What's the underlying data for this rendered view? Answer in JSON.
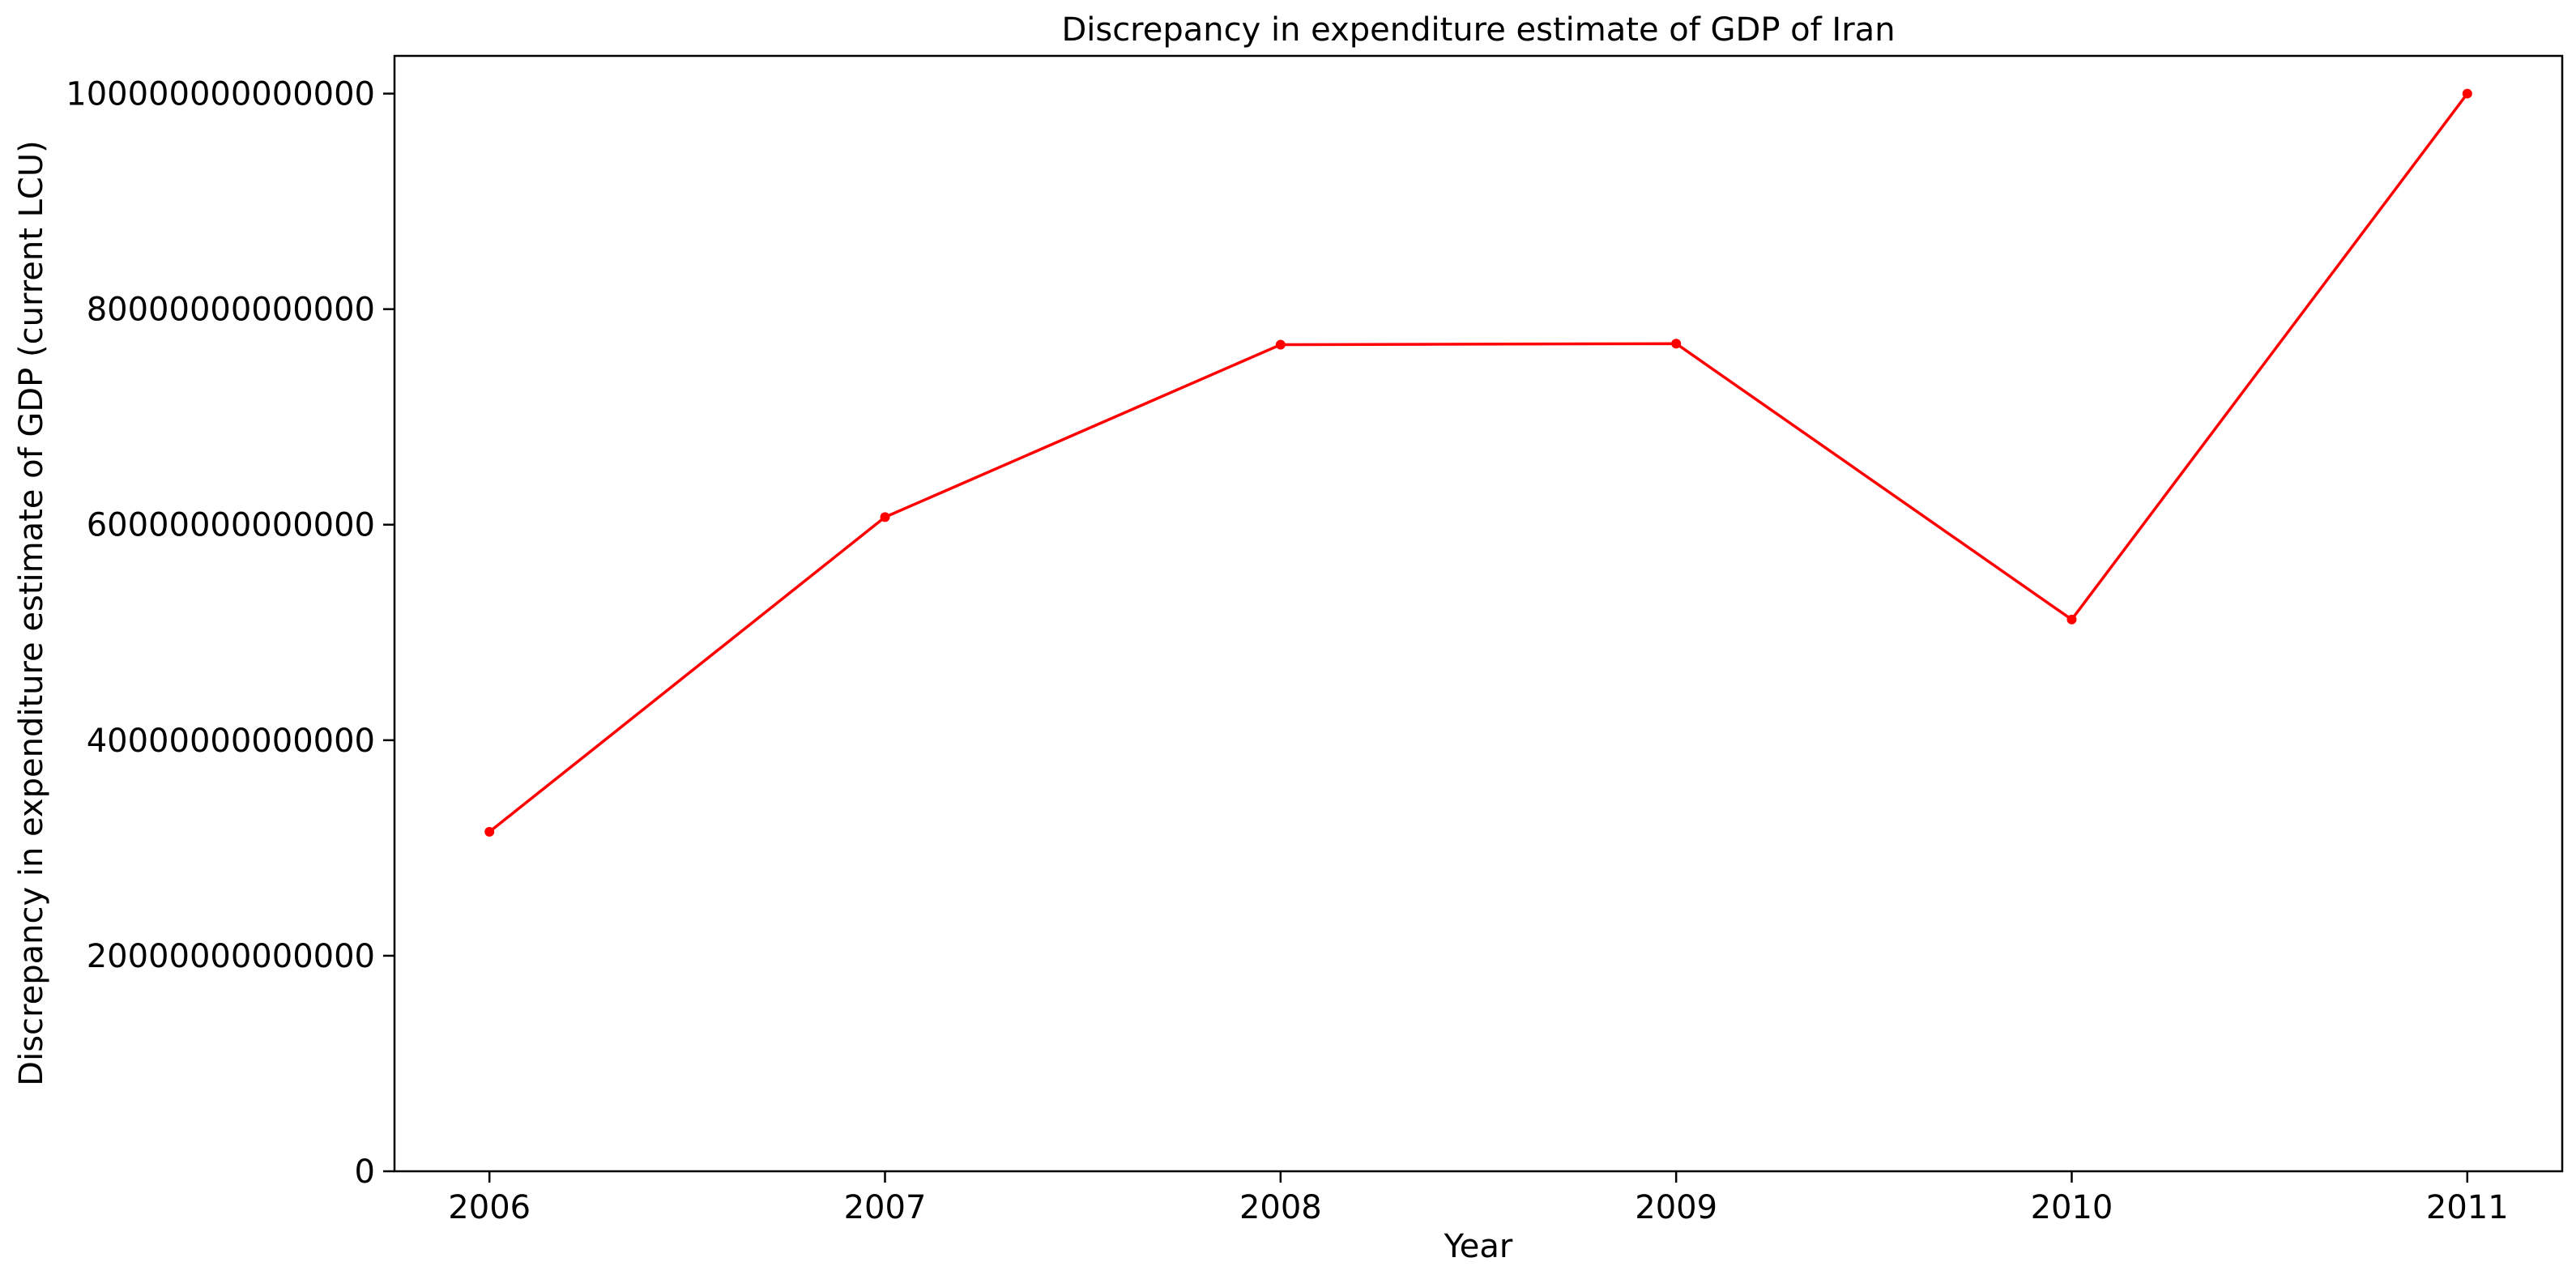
{
  "chart_data": {
    "type": "line",
    "title": "Discrepancy in expenditure estimate of GDP of Iran",
    "xlabel": "Year",
    "ylabel": "Discrepancy in expenditure estimate of GDP (current LCU)",
    "x": [
      2006,
      2007,
      2008,
      2009,
      2010,
      2011
    ],
    "x_tick_labels": [
      "2006",
      "2007",
      "2008",
      "2009",
      "2010",
      "2011"
    ],
    "series": [
      {
        "values": [
          31500000000000,
          60700000000000,
          76700000000000,
          76800000000000,
          51200000000000,
          100000000000000
        ],
        "color": "#ff0000",
        "marker": "circle"
      }
    ],
    "y_ticks": [
      0,
      20000000000000,
      40000000000000,
      60000000000000,
      80000000000000,
      100000000000000
    ],
    "y_tick_labels": [
      "0",
      "20000000000000",
      "40000000000000",
      "60000000000000",
      "80000000000000",
      "100000000000000"
    ],
    "xlim": [
      2005.76,
      2011.24
    ],
    "ylim": [
      0,
      103500000000000
    ],
    "grid": false,
    "legend": "none"
  }
}
